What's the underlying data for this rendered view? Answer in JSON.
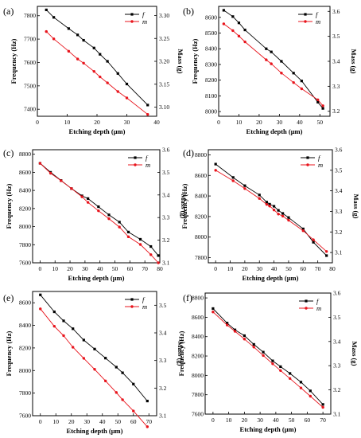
{
  "figure": {
    "panels": [
      {
        "label": "(a)",
        "xlabel": "Etching depth (μm)",
        "ylabel_left": "Frequency (Hz)",
        "ylabel_right": "Mass (g)",
        "xticks": [
          "0",
          "10",
          "20",
          "30",
          "40"
        ],
        "yticks_left": [
          "7400",
          "7500",
          "7600",
          "7700",
          "7800"
        ],
        "yticks_right": [
          "3.10",
          "3.15",
          "3.20",
          "3.25",
          "3.30"
        ],
        "legend": [
          "f",
          "m"
        ]
      },
      {
        "label": "(b)",
        "xlabel": "Etching depth (μm)",
        "ylabel_left": "Frequency (Hz)",
        "ylabel_right": "Mass (g)",
        "xticks": [
          "0",
          "10",
          "20",
          "30",
          "40",
          "50"
        ],
        "yticks_left": [
          "8000",
          "8100",
          "8200",
          "8300",
          "8400",
          "8500",
          "8600"
        ],
        "yticks_right": [
          "3.2",
          "3.3",
          "3.4",
          "3.5",
          "3.6"
        ],
        "legend": [
          "f",
          "m"
        ]
      },
      {
        "label": "(c)",
        "xlabel": "Etching depth (μm)",
        "ylabel_left": "Frequency (Hz)",
        "ylabel_right": "Mass (g)",
        "xticks": [
          "0",
          "10",
          "20",
          "30",
          "40",
          "50",
          "60",
          "70",
          "80"
        ],
        "yticks_left": [
          "7600",
          "7800",
          "8000",
          "8200",
          "8400",
          "8600",
          "8800"
        ],
        "yticks_right": [
          "3.1",
          "3.2",
          "3.3",
          "3.4",
          "3.5",
          "3.6"
        ],
        "legend": [
          "f",
          "m"
        ]
      },
      {
        "label": "(d)",
        "xlabel": "Etching depth (μm)",
        "ylabel_left": "Frequency (Hz)",
        "ylabel_right": "Mass (g)",
        "xticks": [
          "0",
          "10",
          "20",
          "30",
          "40",
          "50",
          "60",
          "70",
          "80"
        ],
        "yticks_left": [
          "7800",
          "8000",
          "8200",
          "8400",
          "8600",
          "8800"
        ],
        "yticks_right": [
          "3.1",
          "3.2",
          "3.3",
          "3.4",
          "3.5",
          "3.6"
        ],
        "legend": [
          "f",
          "m"
        ]
      },
      {
        "label": "(e)",
        "xlabel": "Etching depth (μm)",
        "ylabel_left": "Frequency (Hz)",
        "ylabel_right": "Mass (g)",
        "xticks": [
          "0",
          "10",
          "20",
          "30",
          "40",
          "50",
          "60",
          "70"
        ],
        "yticks_left": [
          "7600",
          "7800",
          "8000",
          "8200",
          "8400",
          "8600"
        ],
        "yticks_right": [
          "3.1",
          "3.2",
          "3.3",
          "3.4",
          "3.5"
        ],
        "legend": [
          "f",
          "m"
        ]
      },
      {
        "label": "(f)",
        "xlabel": "Etching depth (μm)",
        "ylabel_left": "Frequency (Hz)",
        "ylabel_right": "Mass (g)",
        "xticks": [
          "0",
          "10",
          "20",
          "30",
          "40",
          "50",
          "60",
          "70"
        ],
        "yticks_left": [
          "7600",
          "7800",
          "8000",
          "8200",
          "8400",
          "8600",
          "8800"
        ],
        "yticks_right": [
          "3.1",
          "3.2",
          "3.3",
          "3.4",
          "3.5",
          "3.6"
        ],
        "legend": [
          "f",
          "m"
        ]
      }
    ]
  },
  "colors": {
    "f": "#000000",
    "m": "#e8141c"
  },
  "chart_data": [
    {
      "type": "line",
      "panel": "(a)",
      "xlim": [
        0,
        40
      ],
      "ylim_left": [
        7370,
        7840
      ],
      "ylim_right": [
        3.08,
        3.32
      ],
      "series": [
        {
          "name": "f",
          "axis": "left",
          "marker": "square",
          "x": [
            3,
            5.5,
            10.5,
            13.5,
            15.5,
            19,
            21,
            23.5,
            27,
            30,
            37
          ],
          "y": [
            7825,
            7793,
            7745,
            7718,
            7695,
            7662,
            7635,
            7605,
            7553,
            7508,
            7418
          ]
        },
        {
          "name": "m",
          "axis": "right",
          "marker": "circle",
          "x": [
            3,
            5.5,
            10.5,
            13.5,
            15.5,
            19,
            21,
            23.5,
            27,
            30,
            37
          ],
          "y": [
            3.265,
            3.249,
            3.222,
            3.205,
            3.196,
            3.178,
            3.166,
            3.153,
            3.134,
            3.12,
            3.084
          ]
        }
      ]
    },
    {
      "type": "line",
      "panel": "(b)",
      "xlim": [
        0,
        55
      ],
      "ylim_left": [
        7970,
        8670
      ],
      "ylim_right": [
        3.18,
        3.62
      ],
      "series": [
        {
          "name": "f",
          "axis": "left",
          "marker": "square",
          "x": [
            2.5,
            7,
            10,
            13,
            23.5,
            26,
            31,
            37,
            41,
            49,
            51.5
          ],
          "y": [
            8645,
            8605,
            8565,
            8520,
            8400,
            8380,
            8320,
            8245,
            8195,
            8060,
            8020
          ]
        },
        {
          "name": "m",
          "axis": "right",
          "marker": "circle",
          "x": [
            2.5,
            7,
            10,
            13,
            23.5,
            26,
            31,
            37,
            41,
            49,
            51.5
          ],
          "y": [
            3.55,
            3.523,
            3.501,
            3.478,
            3.406,
            3.39,
            3.353,
            3.315,
            3.29,
            3.246,
            3.222
          ]
        }
      ]
    },
    {
      "type": "line",
      "panel": "(c)",
      "xlim": [
        -5,
        80
      ],
      "ylim_left": [
        7600,
        8850
      ],
      "ylim_right": [
        3.1,
        3.6
      ],
      "series": [
        {
          "name": "f",
          "axis": "left",
          "marker": "square",
          "x": [
            0,
            7,
            14,
            21,
            28,
            32,
            39,
            46,
            53,
            59,
            67,
            74,
            79
          ],
          "y": [
            8700,
            8600,
            8510,
            8420,
            8340,
            8310,
            8220,
            8130,
            8050,
            7940,
            7860,
            7780,
            7680
          ]
        },
        {
          "name": "m",
          "axis": "right",
          "marker": "circle",
          "x": [
            0,
            7,
            14,
            21,
            28,
            32,
            39,
            46,
            53,
            59,
            67,
            74,
            79
          ],
          "y": [
            3.54,
            3.496,
            3.463,
            3.428,
            3.392,
            3.367,
            3.33,
            3.295,
            3.258,
            3.215,
            3.181,
            3.136,
            3.1
          ]
        }
      ]
    },
    {
      "type": "line",
      "panel": "(d)",
      "xlim": [
        -5,
        80
      ],
      "ylim_left": [
        7750,
        8850
      ],
      "ylim_right": [
        3.05,
        3.6
      ],
      "series": [
        {
          "name": "f",
          "axis": "left",
          "marker": "square",
          "x": [
            0,
            12,
            20,
            30,
            35,
            37,
            40,
            43,
            46,
            50,
            60,
            67,
            76
          ],
          "y": [
            8710,
            8580,
            8500,
            8410,
            8340,
            8320,
            8300,
            8260,
            8230,
            8190,
            8080,
            7950,
            7820
          ]
        },
        {
          "name": "m",
          "axis": "right",
          "marker": "circle",
          "x": [
            0,
            12,
            20,
            30,
            35,
            37,
            40,
            43,
            46,
            50,
            60,
            67,
            76
          ],
          "y": [
            3.5,
            3.449,
            3.411,
            3.363,
            3.334,
            3.326,
            3.307,
            3.287,
            3.277,
            3.257,
            3.206,
            3.162,
            3.105
          ]
        }
      ]
    },
    {
      "type": "line",
      "panel": "(e)",
      "xlim": [
        -5,
        75
      ],
      "ylim_left": [
        7600,
        8700
      ],
      "ylim_right": [
        3.1,
        3.55
      ],
      "series": [
        {
          "name": "f",
          "axis": "left",
          "marker": "square",
          "x": [
            0,
            9,
            15,
            21,
            28,
            35,
            42,
            49,
            53,
            60,
            69
          ],
          "y": [
            8670,
            8520,
            8440,
            8370,
            8270,
            8190,
            8110,
            8030,
            7980,
            7880,
            7730
          ]
        },
        {
          "name": "m",
          "axis": "right",
          "marker": "circle",
          "x": [
            0,
            9,
            15,
            21,
            28,
            35,
            42,
            49,
            53,
            60,
            69
          ],
          "y": [
            3.487,
            3.424,
            3.39,
            3.348,
            3.308,
            3.268,
            3.226,
            3.184,
            3.158,
            3.117,
            3.06
          ]
        }
      ]
    },
    {
      "type": "line",
      "panel": "(f)",
      "xlim": [
        -5,
        75
      ],
      "ylim_left": [
        7600,
        8850
      ],
      "ylim_right": [
        3.1,
        3.6
      ],
      "series": [
        {
          "name": "f",
          "axis": "left",
          "marker": "square",
          "x": [
            0,
            9,
            14,
            20,
            26,
            32,
            38,
            43,
            49,
            56,
            62,
            70
          ],
          "y": [
            8690,
            8540,
            8470,
            8410,
            8320,
            8240,
            8150,
            8090,
            8020,
            7930,
            7840,
            7700
          ]
        },
        {
          "name": "m",
          "axis": "right",
          "marker": "circle",
          "x": [
            0,
            9,
            14,
            20,
            26,
            32,
            38,
            43,
            49,
            56,
            62,
            70
          ],
          "y": [
            3.522,
            3.468,
            3.442,
            3.41,
            3.377,
            3.342,
            3.308,
            3.28,
            3.247,
            3.208,
            3.174,
            3.128
          ]
        }
      ]
    }
  ]
}
